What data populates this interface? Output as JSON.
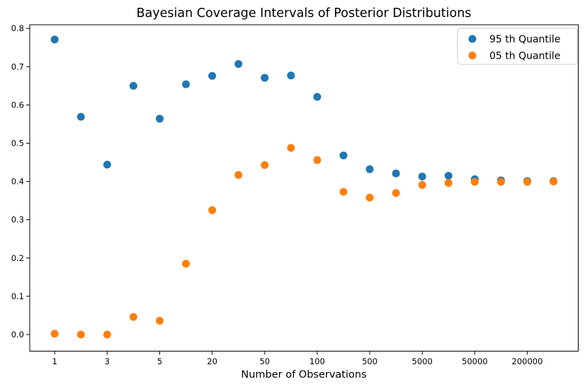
{
  "chart_data": {
    "type": "scatter",
    "title": "Bayesian Coverage Intervals of Posterior Distributions",
    "xlabel": "Number of Observations",
    "ylabel": "",
    "n_points": 20,
    "x_tick_labels": [
      "1",
      "3",
      "5",
      "20",
      "50",
      "100",
      "500",
      "5000",
      "50000",
      "200000"
    ],
    "x_tick_indices": [
      0,
      2,
      4,
      6,
      8,
      10,
      12,
      14,
      16,
      18
    ],
    "y_tick_labels": [
      "0.0",
      "0.1",
      "0.2",
      "0.3",
      "0.4",
      "0.5",
      "0.6",
      "0.7",
      "0.8"
    ],
    "ylim": [
      0.0,
      0.8
    ],
    "grid": false,
    "legend_position": "upper right",
    "series": [
      {
        "name": "95 th Quantile",
        "color": "#1f77b4",
        "values": [
          0.771,
          0.569,
          0.444,
          0.65,
          0.564,
          0.654,
          0.676,
          0.707,
          0.671,
          0.677,
          0.621,
          0.468,
          0.432,
          0.421,
          0.413,
          0.415,
          0.406,
          0.403,
          0.401,
          0.401
        ]
      },
      {
        "name": "05 th Quantile",
        "color": "#ff7f0e",
        "values": [
          0.002,
          0.0,
          0.0,
          0.046,
          0.036,
          0.185,
          0.325,
          0.417,
          0.443,
          0.488,
          0.456,
          0.373,
          0.358,
          0.37,
          0.391,
          0.396,
          0.399,
          0.399,
          0.399,
          0.4
        ]
      }
    ]
  }
}
